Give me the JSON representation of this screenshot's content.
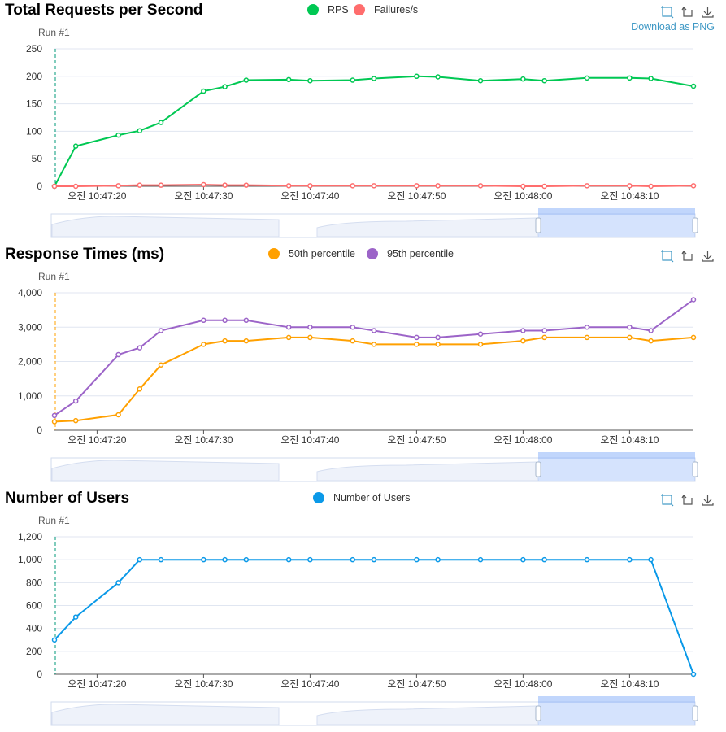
{
  "toolbox": {
    "zoom_icon": "zoom-select-icon",
    "restore_icon": "restore-icon",
    "download_icon": "download-icon",
    "download_tooltip": "Download as PNG"
  },
  "chart_data": [
    {
      "type": "line",
      "title": "Total Requests per Second",
      "run_label": "Run #1",
      "x": [
        "10:47:17",
        "10:47:19",
        "10:47:23",
        "10:47:25",
        "10:47:27",
        "10:47:31",
        "10:47:33",
        "10:47:35",
        "10:47:39",
        "10:47:41",
        "10:47:45",
        "10:47:47",
        "10:47:51",
        "10:47:53",
        "10:47:57",
        "10:48:01",
        "10:48:03",
        "10:48:07",
        "10:48:11",
        "10:48:13",
        "10:48:17"
      ],
      "x_tick_labels": [
        "오전 10:47:20",
        "오전 10:47:30",
        "오전 10:47:40",
        "오전 10:47:50",
        "오전 10:48:00",
        "오전 10:48:10"
      ],
      "x_tick_times": [
        "10:47:21",
        "10:47:31",
        "10:47:41",
        "10:47:51",
        "10:48:01",
        "10:48:11"
      ],
      "x_range": [
        "10:47:17",
        "10:48:17"
      ],
      "ylim": [
        0,
        250
      ],
      "yticks": [
        0,
        50,
        100,
        150,
        200,
        250
      ],
      "grid": true,
      "legend": "top-center",
      "series": [
        {
          "name": "RPS",
          "color": "#00c853",
          "values": [
            0,
            73,
            93,
            101,
            116,
            173,
            181,
            193,
            194,
            192,
            193,
            196,
            200,
            199,
            192,
            195,
            192,
            197,
            197,
            196,
            182
          ]
        },
        {
          "name": "Failures/s",
          "color": "#ff6d6d",
          "values": [
            0,
            0,
            1,
            2,
            2,
            3,
            2,
            2,
            1,
            1,
            1,
            1,
            1,
            1,
            1,
            0,
            0,
            1,
            1,
            0,
            1
          ]
        }
      ]
    },
    {
      "type": "line",
      "title": "Response Times (ms)",
      "run_label": "Run #1",
      "x": [
        "10:47:17",
        "10:47:19",
        "10:47:23",
        "10:47:25",
        "10:47:27",
        "10:47:31",
        "10:47:33",
        "10:47:35",
        "10:47:39",
        "10:47:41",
        "10:47:45",
        "10:47:47",
        "10:47:51",
        "10:47:53",
        "10:47:57",
        "10:48:01",
        "10:48:03",
        "10:48:07",
        "10:48:11",
        "10:48:13",
        "10:48:17"
      ],
      "x_tick_labels": [
        "오전 10:47:20",
        "오전 10:47:30",
        "오전 10:47:40",
        "오전 10:47:50",
        "오전 10:48:00",
        "오전 10:48:10"
      ],
      "x_tick_times": [
        "10:47:21",
        "10:47:31",
        "10:47:41",
        "10:47:51",
        "10:48:01",
        "10:48:11"
      ],
      "x_range": [
        "10:47:17",
        "10:48:17"
      ],
      "ylim": [
        0,
        4000
      ],
      "yticks": [
        0,
        1000,
        2000,
        3000,
        4000
      ],
      "ytick_labels": [
        "0",
        "1,000",
        "2,000",
        "3,000",
        "4,000"
      ],
      "grid": true,
      "legend": "top-center",
      "series": [
        {
          "name": "50th percentile",
          "color": "#ffa000",
          "values": [
            250,
            280,
            450,
            1200,
            1900,
            2500,
            2600,
            2600,
            2700,
            2700,
            2600,
            2500,
            2500,
            2500,
            2500,
            2600,
            2700,
            2700,
            2700,
            2600,
            2700
          ]
        },
        {
          "name": "95th percentile",
          "color": "#9c64c8",
          "values": [
            430,
            850,
            2200,
            2400,
            2900,
            3200,
            3200,
            3200,
            3000,
            3000,
            3000,
            2900,
            2700,
            2700,
            2800,
            2900,
            2900,
            3000,
            3000,
            2900,
            3800
          ]
        }
      ]
    },
    {
      "type": "line",
      "title": "Number of Users",
      "run_label": "Run #1",
      "x": [
        "10:47:17",
        "10:47:19",
        "10:47:23",
        "10:47:25",
        "10:47:27",
        "10:47:31",
        "10:47:33",
        "10:47:35",
        "10:47:39",
        "10:47:41",
        "10:47:45",
        "10:47:47",
        "10:47:51",
        "10:47:53",
        "10:47:57",
        "10:48:01",
        "10:48:03",
        "10:48:07",
        "10:48:11",
        "10:48:13",
        "10:48:17"
      ],
      "x_tick_labels": [
        "오전 10:47:20",
        "오전 10:47:30",
        "오전 10:47:40",
        "오전 10:47:50",
        "오전 10:48:00",
        "오전 10:48:10"
      ],
      "x_tick_times": [
        "10:47:21",
        "10:47:31",
        "10:47:41",
        "10:47:51",
        "10:48:01",
        "10:48:11"
      ],
      "x_range": [
        "10:47:17",
        "10:48:17"
      ],
      "ylim": [
        0,
        1200
      ],
      "yticks": [
        0,
        200,
        400,
        600,
        800,
        1000,
        1200
      ],
      "ytick_labels": [
        "0",
        "200",
        "400",
        "600",
        "800",
        "1,000",
        "1,200"
      ],
      "grid": true,
      "legend": "top-center",
      "series": [
        {
          "name": "Number of Users",
          "color": "#0b99e8",
          "values": [
            300,
            500,
            800,
            1000,
            1000,
            1000,
            1000,
            1000,
            1000,
            1000,
            1000,
            1000,
            1000,
            1000,
            1000,
            1000,
            1000,
            1000,
            1000,
            1000,
            0
          ]
        }
      ]
    }
  ]
}
